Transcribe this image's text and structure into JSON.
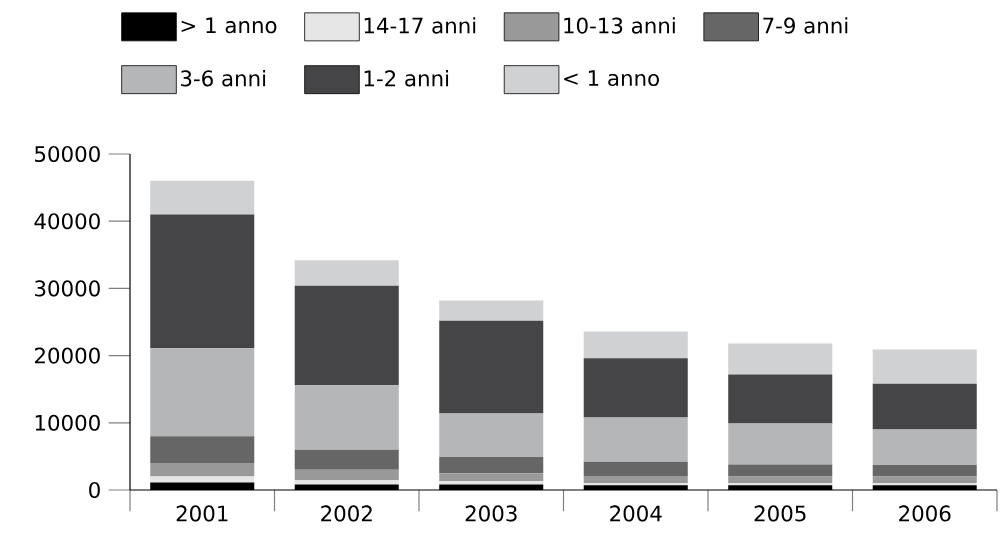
{
  "chart_data": {
    "type": "bar",
    "stacked": true,
    "legend": "top",
    "categories": [
      "2001",
      "2002",
      "2003",
      "2004",
      "2005",
      "2006"
    ],
    "ylim": [
      0,
      50000
    ],
    "yticks": [
      0,
      10000,
      20000,
      30000,
      40000,
      50000
    ],
    "series": [
      {
        "name": "> 1 anno",
        "color": "#000000",
        "values": [
          1100,
          800,
          800,
          700,
          700,
          700
        ]
      },
      {
        "name": "14-17 anni",
        "color": "#e6e6e6",
        "values": [
          900,
          700,
          500,
          300,
          300,
          300
        ]
      },
      {
        "name": "10-13 anni",
        "color": "#999999",
        "values": [
          2000,
          1500,
          1200,
          1100,
          1000,
          1000
        ]
      },
      {
        "name": "7-9 anni",
        "color": "#666666",
        "values": [
          4000,
          3000,
          2400,
          2100,
          1800,
          1700
        ]
      },
      {
        "name": "3-6 anni",
        "color": "#b5b6b8",
        "values": [
          13100,
          9600,
          6500,
          6600,
          6100,
          5300
        ]
      },
      {
        "name": "1-2 anni",
        "color": "#454547",
        "values": [
          19900,
          14800,
          13800,
          8800,
          7300,
          6800
        ]
      },
      {
        "name": "< 1 anno",
        "color": "#d0d1d3",
        "values": [
          5000,
          3800,
          3000,
          4000,
          4600,
          5100
        ]
      }
    ]
  }
}
